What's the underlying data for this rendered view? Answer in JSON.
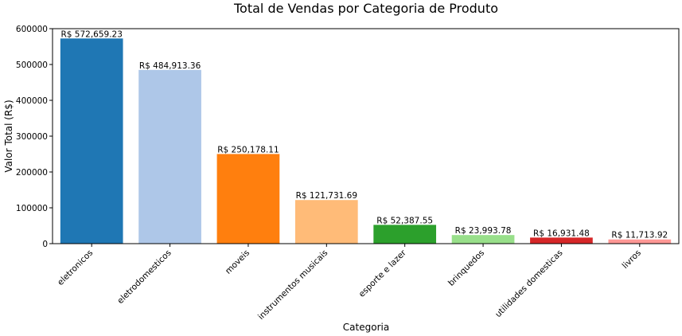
{
  "chart_data": {
    "type": "bar",
    "title": "Total de Vendas por Categoria de Produto",
    "xlabel": "Categoria",
    "ylabel": "Valor Total (R$)",
    "ylim": [
      0,
      600000
    ],
    "yticks": [
      0,
      100000,
      200000,
      300000,
      400000,
      500000,
      600000
    ],
    "ytick_labels": [
      "0",
      "100000",
      "200000",
      "300000",
      "400000",
      "500000",
      "600000"
    ],
    "grid": false,
    "categories": [
      "eletronicos",
      "eletrodomesticos",
      "moveis",
      "instrumentos musicais",
      "esporte e lazer",
      "brinquedos",
      "utilidades domesticas",
      "livros"
    ],
    "values": [
      572659.23,
      484913.36,
      250178.11,
      121731.69,
      52387.55,
      23993.78,
      16931.48,
      11713.92
    ],
    "value_labels": [
      "R$ 572,659.23",
      "R$ 484,913.36",
      "R$ 250,178.11",
      "R$ 121,731.69",
      "R$ 52,387.55",
      "R$ 23,993.78",
      "R$ 16,931.48",
      "R$ 11,713.92"
    ],
    "colors": [
      "#1f77b4",
      "#aec7e8",
      "#ff7f0e",
      "#ffbb78",
      "#2ca02c",
      "#98df8a",
      "#d62728",
      "#ff9896"
    ]
  }
}
